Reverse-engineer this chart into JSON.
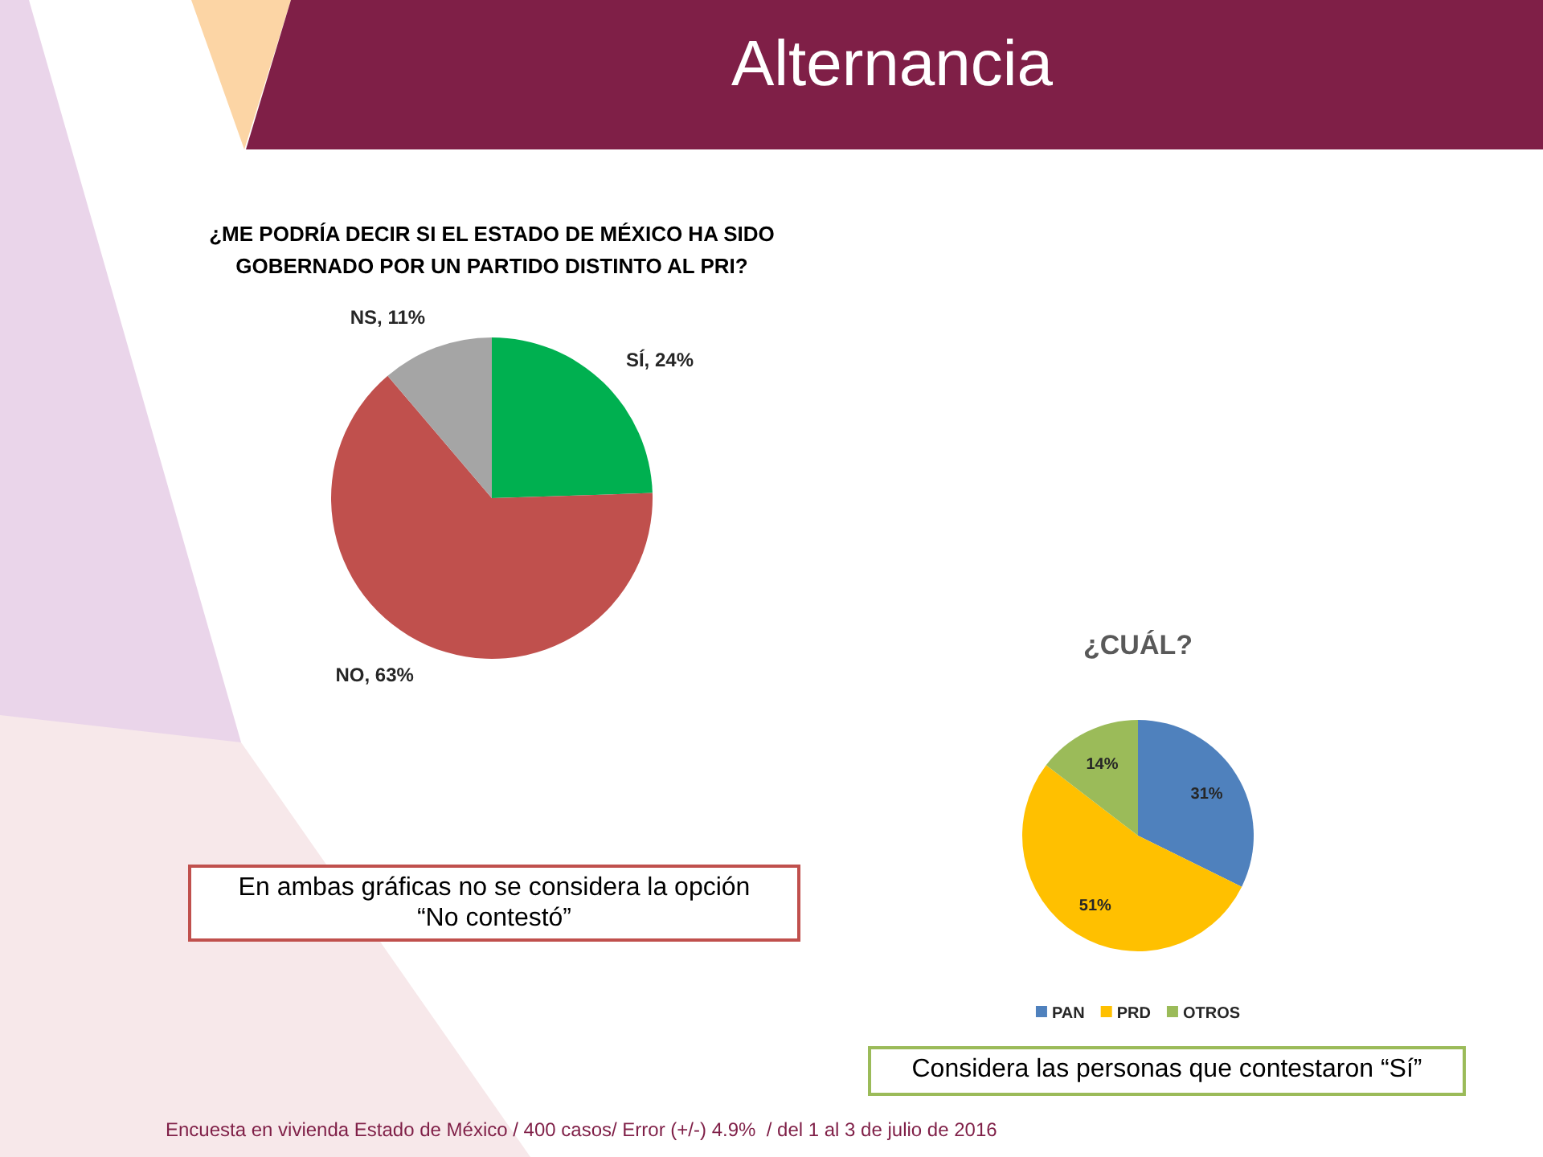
{
  "chart_data": [
    {
      "type": "pie",
      "title": "Alternancia",
      "subtitle": "¿ME PODRÍA DECIR SI EL ESTADO DE MÉXICO HA SIDO GOBERNADO POR UN PARTIDO DISTINTO AL PRI?",
      "categories": [
        "SÍ",
        "NO",
        "NS"
      ],
      "values": [
        24,
        63,
        11
      ],
      "colors": [
        "#00b050",
        "#c0504d",
        "#a5a5a5"
      ],
      "value_labels": [
        "24%",
        "63%",
        "11%"
      ],
      "annotations": [
        "En ambas gráficas no se considera la opción “No contestó”",
        "Encuesta en vivienda Estado de México / 400 casos/ Error (+/-) 4.9%  / del 1 al 3 de julio de 2016"
      ]
    },
    {
      "type": "pie",
      "title": "¿CUÁL?",
      "categories": [
        "PAN",
        "PRD",
        "OTROS"
      ],
      "values": [
        31,
        51,
        14
      ],
      "colors": [
        "#4f81bd",
        "#ffc000",
        "#9bbb59"
      ],
      "value_labels": [
        "31%",
        "51%",
        "14%"
      ],
      "legend": "bottom",
      "annotations": [
        "Considera las personas que contestaron “Sí”"
      ]
    }
  ]
}
